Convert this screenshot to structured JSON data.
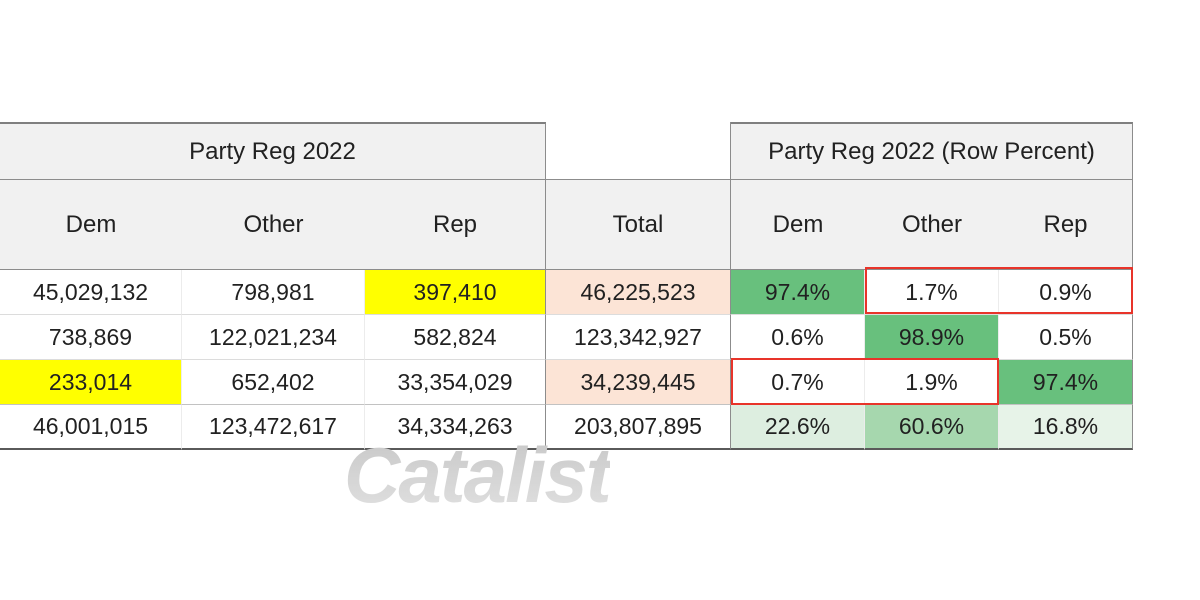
{
  "table": {
    "left": {
      "title": "Party Reg 2022",
      "columns": [
        "Dem",
        "Other",
        "Rep"
      ],
      "rows": [
        [
          "45,029,132",
          "798,981",
          "397,410"
        ],
        [
          "738,869",
          "122,021,234",
          "582,824"
        ],
        [
          "233,014",
          "652,402",
          "33,354,029"
        ],
        [
          "46,001,015",
          "123,472,617",
          "34,334,263"
        ]
      ]
    },
    "total": {
      "header": "Total",
      "values": [
        "46,225,523",
        "123,342,927",
        "34,239,445",
        "203,807,895"
      ]
    },
    "right": {
      "title": "Party Reg 2022 (Row Percent)",
      "columns": [
        "Dem",
        "Other",
        "Rep"
      ],
      "rows": [
        [
          "97.4%",
          "1.7%",
          "0.9%"
        ],
        [
          "0.6%",
          "98.9%",
          "0.5%"
        ],
        [
          "0.7%",
          "1.9%",
          "97.4%"
        ],
        [
          "22.6%",
          "60.6%",
          "16.8%"
        ]
      ]
    }
  },
  "watermark": "Catalist",
  "colors": {
    "header_fill": "#f1f1f1",
    "highlight_yellow": "#ffff00",
    "highlight_peach": "#fce4d6",
    "highlight_green_strong": "#68c07d",
    "highlight_green_medium": "#a6d7ae",
    "highlight_green_light": "#ddeee0",
    "callout_red": "#e8342a",
    "watermark_gray": "#d2d2d2"
  },
  "chart_data": {
    "type": "table",
    "title": "Party Reg 2022",
    "sections": [
      {
        "title": "Party Reg 2022",
        "columns": [
          "Dem",
          "Other",
          "Rep",
          "Total"
        ],
        "rows": [
          [
            45029132,
            798981,
            397410,
            46225523
          ],
          [
            738869,
            122021234,
            582824,
            123342927
          ],
          [
            233014,
            652402,
            33354029,
            34239445
          ],
          [
            46001015,
            123472617,
            34334263,
            203807895
          ]
        ]
      },
      {
        "title": "Party Reg 2022 (Row Percent)",
        "columns": [
          "Dem",
          "Other",
          "Rep"
        ],
        "rows": [
          [
            97.4,
            1.7,
            0.9
          ],
          [
            0.6,
            98.9,
            0.5
          ],
          [
            0.7,
            1.9,
            97.4
          ],
          [
            22.6,
            60.6,
            16.8
          ]
        ]
      }
    ],
    "annotations": [
      "yellow highlight: Rep count row 1 (397,410) and Dem count row 3 (233,014)",
      "peach highlight: Total row 1 (46,225,523) and Total row 3 (34,239,445)",
      "green highlight: diagonal row-percent cells 97.4%, 98.9%, 97.4% and totals row 22.6%/60.6%/16.8%",
      "red outline boxes: Other+Rep percents of row 1 (1.7%, 0.9%) and Dem+Other percents of row 3 (0.7%, 1.9%)"
    ]
  }
}
